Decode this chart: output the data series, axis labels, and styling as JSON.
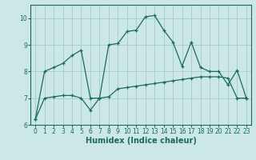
{
  "xlabel": "Humidex (Indice chaleur)",
  "background_color": "#cce8e6",
  "grid_color": "#aacfcc",
  "line_color": "#1a6b5a",
  "x_data": [
    0,
    1,
    2,
    3,
    4,
    5,
    6,
    7,
    8,
    9,
    10,
    11,
    12,
    13,
    14,
    15,
    16,
    17,
    18,
    19,
    20,
    21,
    22,
    23
  ],
  "line1": [
    6.2,
    8.0,
    8.15,
    8.3,
    8.6,
    8.8,
    7.0,
    7.0,
    9.0,
    9.05,
    9.5,
    9.55,
    10.05,
    10.1,
    9.55,
    9.1,
    8.2,
    9.1,
    8.15,
    8.0,
    8.0,
    7.5,
    8.05,
    7.0
  ],
  "line2": [
    6.2,
    7.0,
    7.05,
    7.1,
    7.1,
    7.0,
    6.55,
    7.0,
    7.05,
    7.35,
    7.4,
    7.45,
    7.5,
    7.55,
    7.6,
    7.65,
    7.7,
    7.75,
    7.8,
    7.8,
    7.8,
    7.75,
    7.0,
    7.0
  ],
  "ylim": [
    6,
    10.5
  ],
  "xlim": [
    -0.5,
    23.5
  ],
  "yticks": [
    6,
    7,
    8,
    9,
    10
  ],
  "xticks": [
    0,
    1,
    2,
    3,
    4,
    5,
    6,
    7,
    8,
    9,
    10,
    11,
    12,
    13,
    14,
    15,
    16,
    17,
    18,
    19,
    20,
    21,
    22,
    23
  ],
  "tick_fontsize": 5.5,
  "xlabel_fontsize": 7,
  "marker": "+"
}
